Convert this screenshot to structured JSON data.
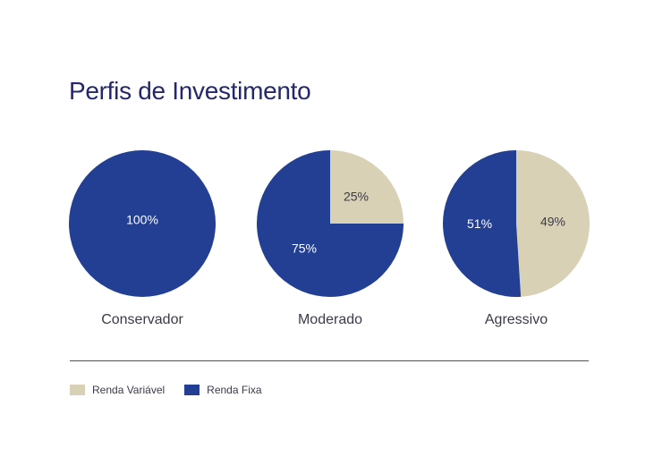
{
  "title": "Perfis de Investimento",
  "colors": {
    "renda_variavel": "#d8d1b6",
    "renda_fixa": "#233f93",
    "title": "#24286a"
  },
  "legend": [
    {
      "label": "Renda Variável",
      "color": "#d8d1b6"
    },
    {
      "label": "Renda Fixa",
      "color": "#233f93"
    }
  ],
  "chart_data": [
    {
      "type": "pie",
      "category": "Conservador",
      "slices": [
        {
          "name": "Renda Fixa",
          "value": 100,
          "label": "100%"
        }
      ]
    },
    {
      "type": "pie",
      "category": "Moderado",
      "slices": [
        {
          "name": "Renda Variável",
          "value": 25,
          "label": "25%"
        },
        {
          "name": "Renda Fixa",
          "value": 75,
          "label": "75%"
        }
      ]
    },
    {
      "type": "pie",
      "category": "Agressivo",
      "slices": [
        {
          "name": "Renda Variável",
          "value": 49,
          "label": "49%"
        },
        {
          "name": "Renda Fixa",
          "value": 51,
          "label": "51%"
        }
      ]
    }
  ]
}
